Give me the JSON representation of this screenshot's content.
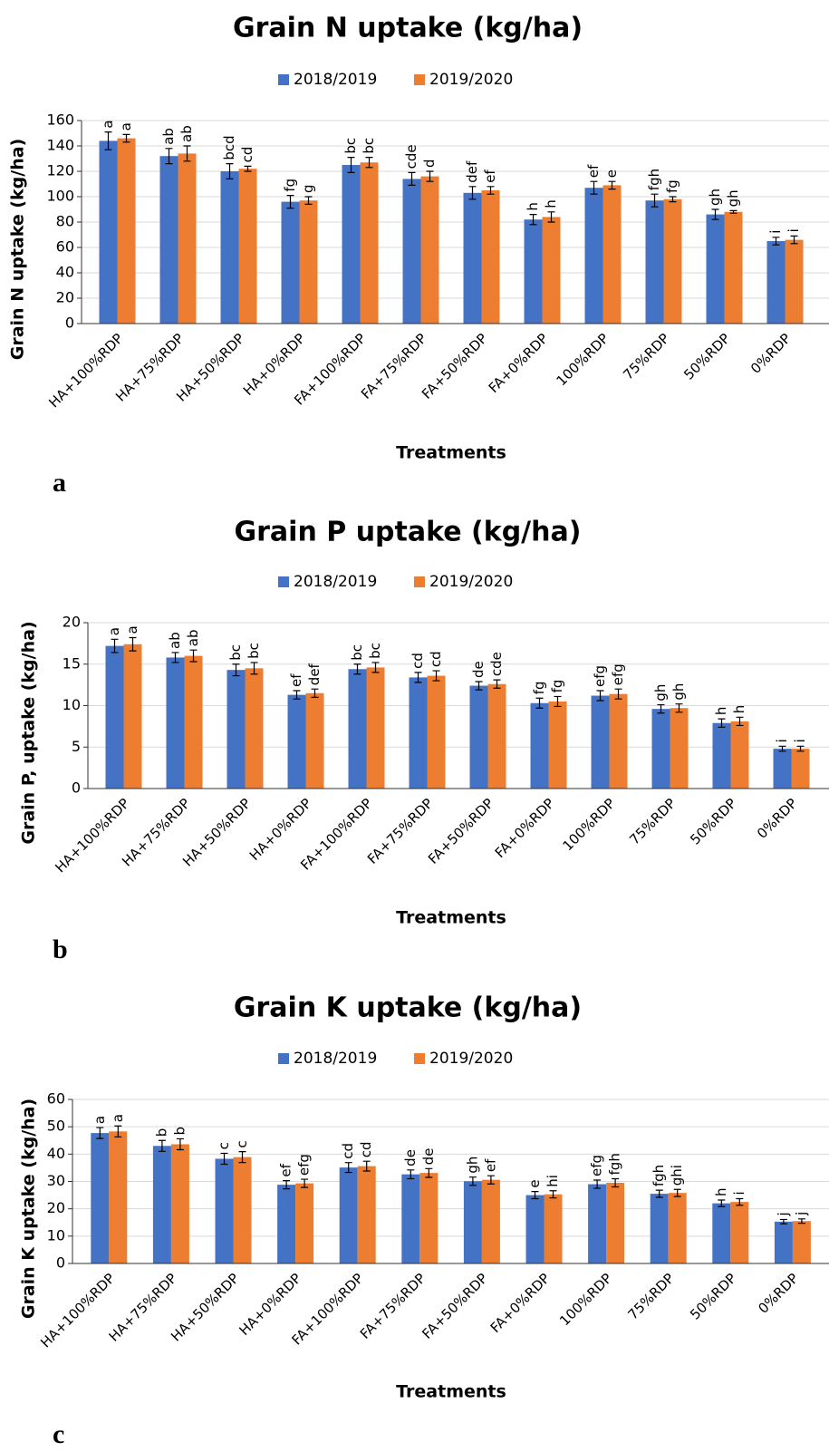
{
  "chart_data": [
    {
      "type": "bar",
      "title": "Grain N uptake (kg/ha)",
      "x_label": "Treatments",
      "y_label": "Grain N uptake (kg/ha)",
      "panel_label": "a",
      "categories": [
        "HA+100%RDP",
        "HA+75%RDP",
        "HA+50%RDP",
        "HA+0%RDP",
        "FA+100%RDP",
        "FA+75%RDP",
        "FA+50%RDP",
        "FA+0%RDP",
        "100%RDP",
        "75%RDP",
        "50%RDP",
        "0%RDP"
      ],
      "series": [
        {
          "name": "2018/2019",
          "color": "#4472c4",
          "values": [
            144,
            132,
            120,
            96,
            125,
            114,
            103,
            82,
            107,
            97,
            86,
            65
          ],
          "errors": [
            7,
            6,
            6,
            5,
            6,
            5,
            5,
            4,
            5,
            5,
            4,
            3
          ],
          "letters": [
            "a",
            "ab",
            "bcd",
            "fg",
            "bc",
            "cde",
            "def",
            "h",
            "ef",
            "fgh",
            "gh",
            "i"
          ]
        },
        {
          "name": "2019/2020",
          "color": "#ed7d31",
          "values": [
            146,
            134,
            122,
            97,
            127,
            116,
            105,
            84,
            109,
            98,
            88,
            66
          ],
          "errors": [
            3,
            6,
            2,
            3,
            4,
            4,
            3,
            4,
            3,
            2,
            1,
            3
          ],
          "letters": [
            "a",
            "ab",
            "cd",
            "g",
            "bc",
            "d",
            "ef",
            "h",
            "e",
            "fg",
            "gh",
            "i"
          ]
        }
      ],
      "ylim": [
        0,
        160
      ],
      "yticks": [
        0,
        20,
        40,
        60,
        80,
        100,
        120,
        140,
        160
      ],
      "grid": true,
      "legend": "top"
    },
    {
      "type": "bar",
      "title": "Grain P uptake (kg/ha)",
      "x_label": "Treatments",
      "y_label": "Grain P, uptake (kg/ha)",
      "panel_label": "b",
      "categories": [
        "HA+100%RDP",
        "HA+75%RDP",
        "HA+50%RDP",
        "HA+0%RDP",
        "FA+100%RDP",
        "FA+75%RDP",
        "FA+50%RDP",
        "FA+0%RDP",
        "100%RDP",
        "75%RDP",
        "50%RDP",
        "0%RDP"
      ],
      "series": [
        {
          "name": "2018/2019",
          "color": "#4472c4",
          "values": [
            17.2,
            15.8,
            14.3,
            11.3,
            14.4,
            13.4,
            12.4,
            10.3,
            11.2,
            9.6,
            7.9,
            4.8
          ],
          "errors": [
            0.8,
            0.6,
            0.7,
            0.5,
            0.6,
            0.6,
            0.5,
            0.6,
            0.6,
            0.5,
            0.5,
            0.3
          ],
          "letters": [
            "a",
            "ab",
            "bc",
            "ef",
            "bc",
            "cd",
            "de",
            "fg",
            "efg",
            "gh",
            "h",
            "i"
          ]
        },
        {
          "name": "2019/2020",
          "color": "#ed7d31",
          "values": [
            17.4,
            16.0,
            14.5,
            11.5,
            14.6,
            13.6,
            12.6,
            10.5,
            11.4,
            9.7,
            8.1,
            4.8
          ],
          "errors": [
            0.8,
            0.7,
            0.7,
            0.5,
            0.6,
            0.6,
            0.5,
            0.6,
            0.6,
            0.5,
            0.5,
            0.3
          ],
          "letters": [
            "a",
            "ab",
            "bc",
            "def",
            "bc",
            "cd",
            "cde",
            "fg",
            "efg",
            "gh",
            "h",
            "i"
          ]
        }
      ],
      "ylim": [
        0,
        20
      ],
      "yticks": [
        0,
        5,
        10,
        15,
        20
      ],
      "grid": true,
      "legend": "top"
    },
    {
      "type": "bar",
      "title": "Grain K uptake (kg/ha)",
      "x_label": "Treatments",
      "y_label": "Grain K uptake (kg/ha)",
      "panel_label": "c",
      "categories": [
        "HA+100%RDP",
        "HA+75%RDP",
        "HA+50%RDP",
        "HA+0%RDP",
        "FA+100%RDP",
        "FA+75%RDP",
        "FA+50%RDP",
        "FA+0%RDP",
        "100%RDP",
        "75%RDP",
        "50%RDP",
        "0%RDP"
      ],
      "series": [
        {
          "name": "2018/2019",
          "color": "#4472c4",
          "values": [
            47.7,
            43,
            38.3,
            28.8,
            35.1,
            32.6,
            30.1,
            25,
            29,
            25.5,
            22,
            15.3
          ],
          "errors": [
            2,
            2,
            2,
            1.5,
            1.8,
            1.6,
            1.5,
            1.3,
            1.5,
            1.3,
            1.2,
            0.8
          ],
          "letters": [
            "a",
            "b",
            "c",
            "ef",
            "cd",
            "de",
            "gh",
            "e",
            "efg",
            "fgh",
            "h",
            "j"
          ]
        },
        {
          "name": "2019/2020",
          "color": "#ed7d31",
          "values": [
            48.3,
            43.6,
            38.9,
            29.3,
            35.6,
            33.1,
            30.6,
            25.3,
            29.5,
            25.8,
            22.5,
            15.5
          ],
          "errors": [
            2,
            2,
            2,
            1.5,
            1.8,
            1.6,
            1.5,
            1.3,
            1.5,
            1.3,
            1.2,
            0.8
          ],
          "letters": [
            "a",
            "b",
            "c",
            "efg",
            "cd",
            "de",
            "ef",
            "hi",
            "fgh",
            "ghi",
            "i",
            "j"
          ]
        }
      ],
      "ylim": [
        0,
        60
      ],
      "yticks": [
        0,
        10,
        20,
        30,
        40,
        50,
        60
      ],
      "grid": true,
      "legend": "top"
    }
  ]
}
